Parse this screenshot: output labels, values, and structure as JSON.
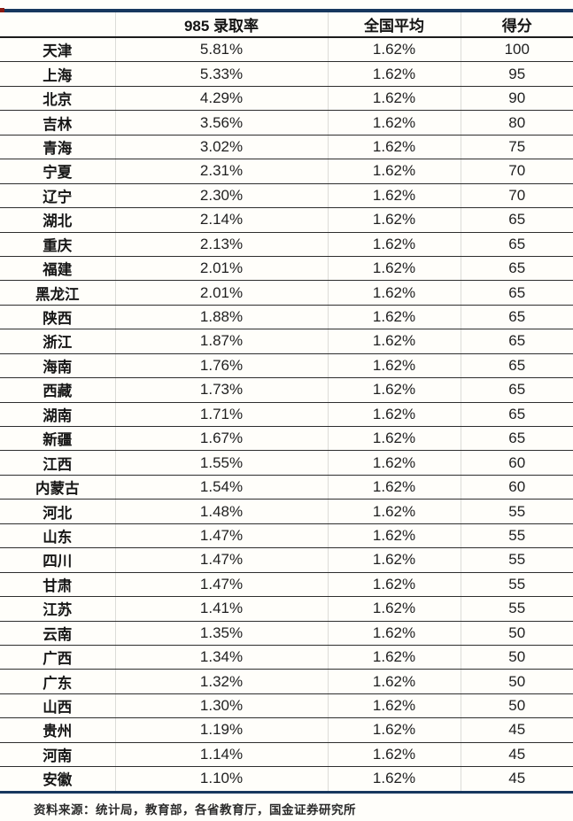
{
  "chart_data": {
    "type": "table",
    "columns": [
      "",
      "985 录取率",
      "全国平均",
      "得分"
    ],
    "rows": [
      {
        "province": "天津",
        "rate": "5.81%",
        "average": "1.62%",
        "score": "100"
      },
      {
        "province": "上海",
        "rate": "5.33%",
        "average": "1.62%",
        "score": "95"
      },
      {
        "province": "北京",
        "rate": "4.29%",
        "average": "1.62%",
        "score": "90"
      },
      {
        "province": "吉林",
        "rate": "3.56%",
        "average": "1.62%",
        "score": "80"
      },
      {
        "province": "青海",
        "rate": "3.02%",
        "average": "1.62%",
        "score": "75"
      },
      {
        "province": "宁夏",
        "rate": "2.31%",
        "average": "1.62%",
        "score": "70"
      },
      {
        "province": "辽宁",
        "rate": "2.30%",
        "average": "1.62%",
        "score": "70"
      },
      {
        "province": "湖北",
        "rate": "2.14%",
        "average": "1.62%",
        "score": "65"
      },
      {
        "province": "重庆",
        "rate": "2.13%",
        "average": "1.62%",
        "score": "65"
      },
      {
        "province": "福建",
        "rate": "2.01%",
        "average": "1.62%",
        "score": "65"
      },
      {
        "province": "黑龙江",
        "rate": "2.01%",
        "average": "1.62%",
        "score": "65"
      },
      {
        "province": "陕西",
        "rate": "1.88%",
        "average": "1.62%",
        "score": "65"
      },
      {
        "province": "浙江",
        "rate": "1.87%",
        "average": "1.62%",
        "score": "65"
      },
      {
        "province": "海南",
        "rate": "1.76%",
        "average": "1.62%",
        "score": "65"
      },
      {
        "province": "西藏",
        "rate": "1.73%",
        "average": "1.62%",
        "score": "65"
      },
      {
        "province": "湖南",
        "rate": "1.71%",
        "average": "1.62%",
        "score": "65"
      },
      {
        "province": "新疆",
        "rate": "1.67%",
        "average": "1.62%",
        "score": "65"
      },
      {
        "province": "江西",
        "rate": "1.55%",
        "average": "1.62%",
        "score": "60"
      },
      {
        "province": "内蒙古",
        "rate": "1.54%",
        "average": "1.62%",
        "score": "60"
      },
      {
        "province": "河北",
        "rate": "1.48%",
        "average": "1.62%",
        "score": "55"
      },
      {
        "province": "山东",
        "rate": "1.47%",
        "average": "1.62%",
        "score": "55"
      },
      {
        "province": "四川",
        "rate": "1.47%",
        "average": "1.62%",
        "score": "55"
      },
      {
        "province": "甘肃",
        "rate": "1.47%",
        "average": "1.62%",
        "score": "55"
      },
      {
        "province": "江苏",
        "rate": "1.41%",
        "average": "1.62%",
        "score": "55"
      },
      {
        "province": "云南",
        "rate": "1.35%",
        "average": "1.62%",
        "score": "50"
      },
      {
        "province": "广西",
        "rate": "1.34%",
        "average": "1.62%",
        "score": "50"
      },
      {
        "province": "广东",
        "rate": "1.32%",
        "average": "1.62%",
        "score": "50"
      },
      {
        "province": "山西",
        "rate": "1.30%",
        "average": "1.62%",
        "score": "50"
      },
      {
        "province": "贵州",
        "rate": "1.19%",
        "average": "1.62%",
        "score": "45"
      },
      {
        "province": "河南",
        "rate": "1.14%",
        "average": "1.62%",
        "score": "45"
      },
      {
        "province": "安徽",
        "rate": "1.10%",
        "average": "1.62%",
        "score": "45"
      }
    ]
  },
  "footer": {
    "source": "资料来源：统计局，教育部，各省教育厅，国金证券研究所"
  },
  "colors": {
    "accent_line": "#17375E",
    "red_tick": "#8B1A12",
    "row_line": "#2e2e2e"
  }
}
